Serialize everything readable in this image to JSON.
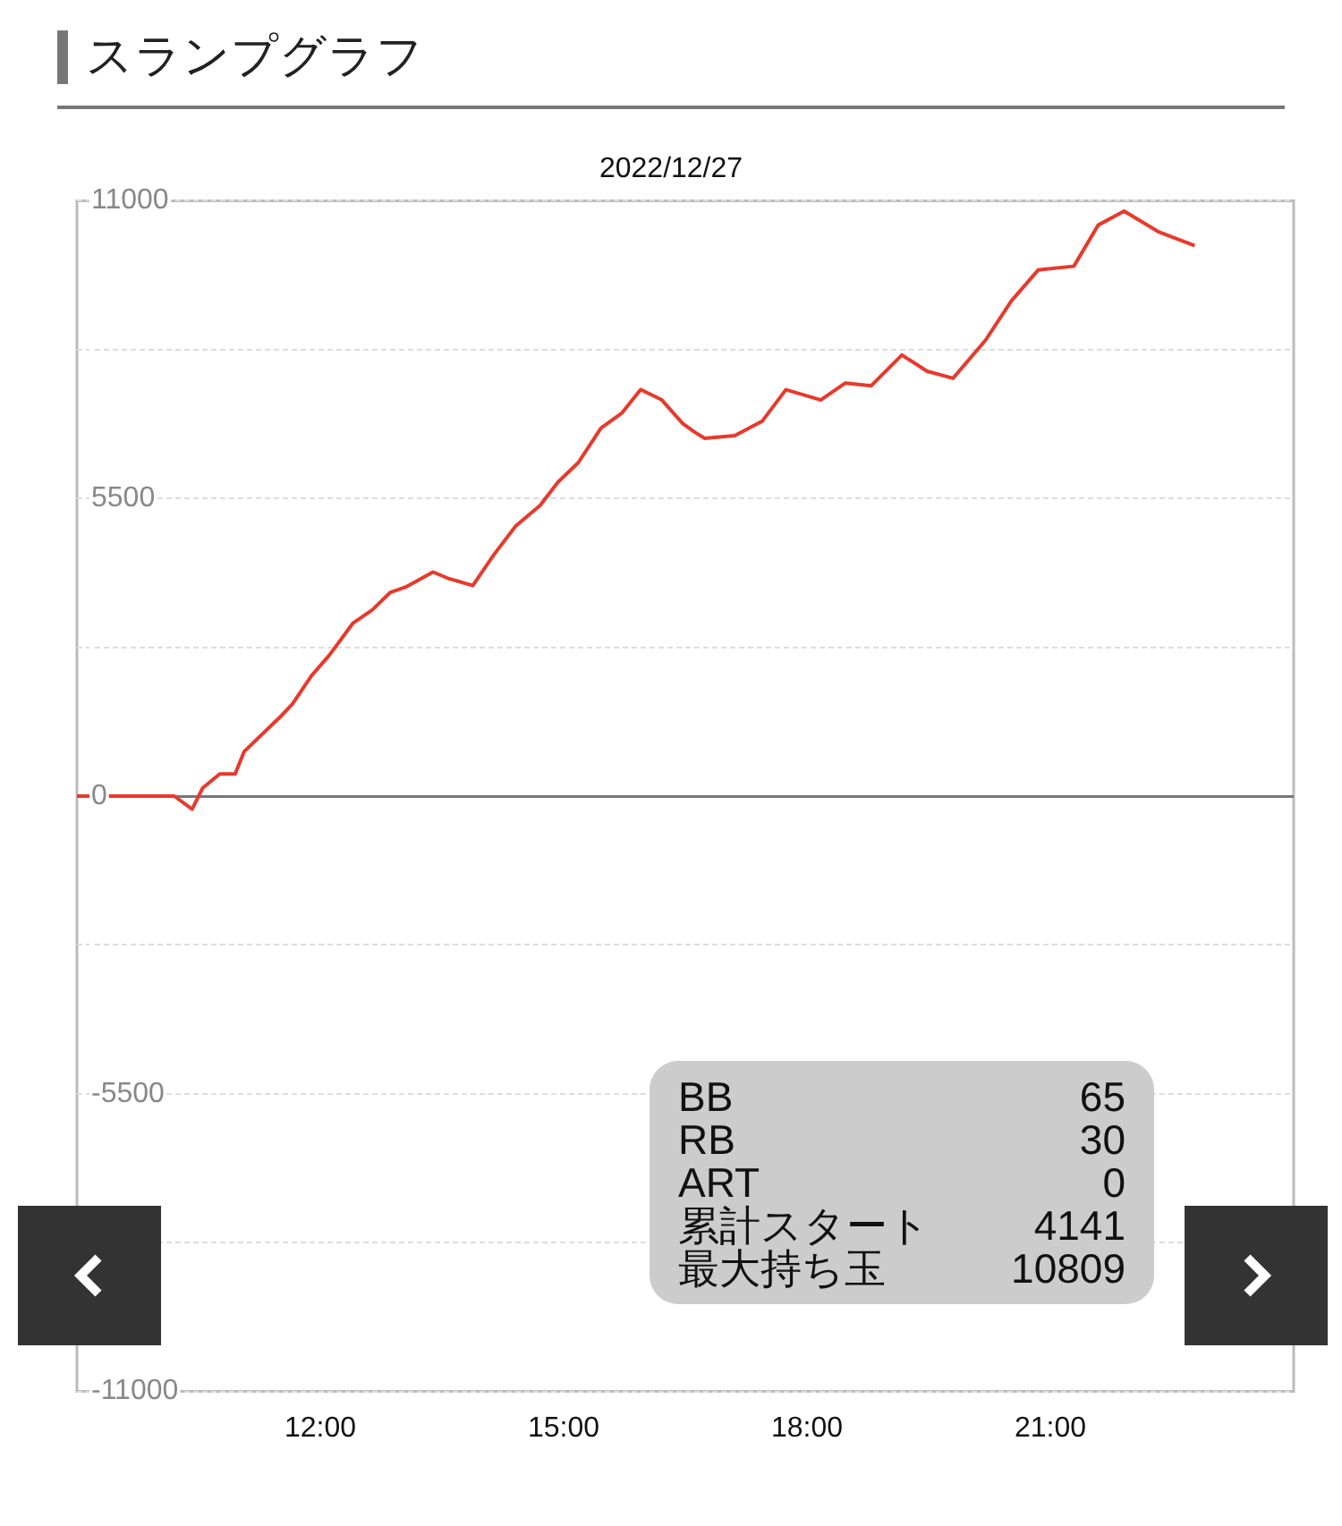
{
  "chart_data": {
    "type": "line",
    "title": "スランプグラフ",
    "subtitle": "2022/12/27",
    "x": [
      9,
      10.2,
      10.42,
      10.55,
      10.76,
      10.95,
      11.06,
      11.51,
      11.66,
      11.89,
      12.11,
      12.4,
      12.64,
      12.86,
      13.05,
      13.39,
      13.58,
      13.88,
      14.14,
      14.41,
      14.71,
      14.93,
      15.18,
      15.46,
      15.72,
      15.95,
      16.21,
      16.47,
      16.62,
      16.74,
      17.11,
      17.45,
      17.74,
      18.17,
      18.47,
      18.79,
      19.17,
      19.48,
      19.8,
      20.2,
      20.52,
      20.85,
      21.29,
      21.59,
      21.91,
      22.34,
      22.78
    ],
    "series": [
      {
        "color": "#e8392b",
        "values": [
          0,
          0,
          -240,
          150,
          410,
          410,
          820,
          1470,
          1710,
          2220,
          2600,
          3190,
          3440,
          3760,
          3860,
          4140,
          4020,
          3890,
          4460,
          4990,
          5370,
          5800,
          6160,
          6800,
          7080,
          7510,
          7320,
          6880,
          6720,
          6610,
          6660,
          6930,
          7510,
          7320,
          7630,
          7580,
          8150,
          7850,
          7720,
          8420,
          9150,
          9720,
          9790,
          10550,
          10809,
          10420,
          10170
        ]
      }
    ],
    "xlim": [
      9,
      24
    ],
    "xticks": [
      {
        "value": 12,
        "label": "12:00"
      },
      {
        "value": 15,
        "label": "15:00"
      },
      {
        "value": 18,
        "label": "18:00"
      },
      {
        "value": 21,
        "label": "21:00"
      }
    ],
    "ylim": [
      -11000,
      11000
    ],
    "yticks": [
      -11000,
      {
        "value": -8250,
        "label": null
      },
      -5500,
      {
        "value": -2750,
        "label": null
      },
      0,
      {
        "value": 2750,
        "label": null
      },
      5500,
      {
        "value": 8250,
        "label": null
      },
      11000
    ],
    "grid": "y",
    "legend": false,
    "marker": "none",
    "line_style": "solid",
    "annotations": [
      "BB 65",
      "RB 30",
      "ART 0",
      "累計スタート 4141",
      "最大持ち玉 10809"
    ]
  }
}
